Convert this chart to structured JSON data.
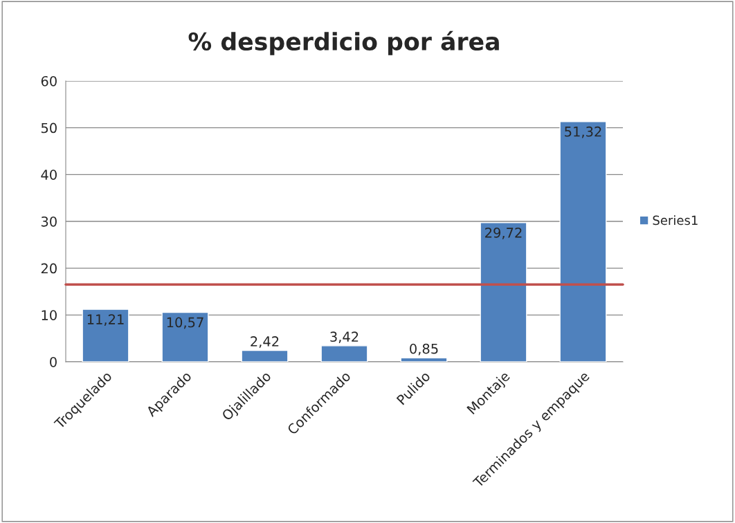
{
  "chart_data": {
    "type": "bar",
    "title": "% desperdicio por área",
    "categories": [
      "Troquelado",
      "Aparado",
      "Ojalillado",
      "Conformado",
      "Pulido",
      "Montaje",
      "Terminados y empaque"
    ],
    "series": [
      {
        "name": "Series1",
        "color": "#4f81bd",
        "values": [
          11.21,
          10.57,
          2.42,
          3.42,
          0.85,
          29.72,
          51.32
        ],
        "value_labels": [
          "11,21",
          "10,57",
          "2,42",
          "3,42",
          "0,85",
          "29,72",
          "51,32"
        ]
      }
    ],
    "ylim": [
      0,
      60
    ],
    "yticks": [
      0,
      10,
      20,
      30,
      40,
      50,
      60
    ],
    "grid": "y",
    "legend": "right",
    "ref_lines": [
      {
        "axis": "y",
        "value": 16.5,
        "color": "#c0504d"
      }
    ]
  }
}
